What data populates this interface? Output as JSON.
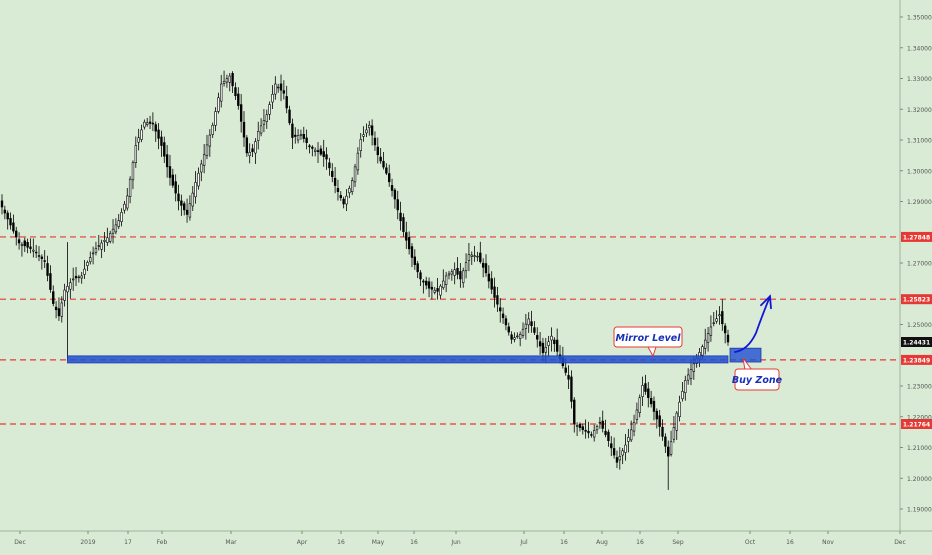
{
  "colors": {
    "background": "#d9ebd5",
    "candle_up": "#ffffff",
    "candle_down": "#000000",
    "candle_outline": "#000000",
    "level_line": "#e53935",
    "zone_fill": "#1f4fd1",
    "arrow": "#1515d8",
    "price_tag_red": "#e53935",
    "price_tag_black": "#111111"
  },
  "chart_data": {
    "type": "candlestick",
    "title": "",
    "xlabel": "",
    "ylabel": "",
    "ylim": [
      1.182,
      1.357
    ],
    "x_tick_labels": [
      "Dec",
      "2019",
      "17",
      "Feb",
      "Mar",
      "Apr",
      "16",
      "May",
      "16",
      "Jun",
      "Jul",
      "16",
      "Aug",
      "16",
      "Sep",
      "Oct",
      "16",
      "Nov",
      "Dec"
    ],
    "y_tick_labels": [
      "1.35000",
      "1.34000",
      "1.33000",
      "1.32000",
      "1.31000",
      "1.30000",
      "1.29000",
      "1.27000",
      "1.25000",
      "1.23000",
      "1.22000",
      "1.21000",
      "1.20000",
      "1.19000"
    ],
    "current_price": "1.24431",
    "levels": [
      {
        "value": 1.27848,
        "label": "1.27848",
        "style": "dashed"
      },
      {
        "value": 1.25823,
        "label": "1.25823",
        "style": "dashed"
      },
      {
        "value": 1.23849,
        "label": "1.23849",
        "style": "dashed"
      },
      {
        "value": 1.21764,
        "label": "1.21764",
        "style": "dashed"
      }
    ],
    "zone": {
      "from": 1.2375,
      "to": 1.2398,
      "start": "2019-01-03"
    },
    "buy_box": {
      "from": 1.2378,
      "to": 1.2423
    },
    "annotations": [
      {
        "text": "Mirror Level"
      },
      {
        "text": "Buy Zone"
      }
    ],
    "arrow_target": 1.2595,
    "candles_anchors": [
      [
        0,
        1.2882
      ],
      [
        6,
        1.2765
      ],
      [
        11,
        1.2742
      ],
      [
        15,
        1.2705
      ],
      [
        18,
        1.2568
      ],
      [
        20,
        1.2528
      ],
      [
        22,
        1.2612
      ],
      [
        25,
        1.2648
      ],
      [
        28,
        1.2658
      ],
      [
        30,
        1.2702
      ],
      [
        33,
        1.2748
      ],
      [
        37,
        1.2782
      ],
      [
        41,
        1.2838
      ],
      [
        44,
        1.2918
      ],
      [
        47,
        1.3082
      ],
      [
        50,
        1.3158
      ],
      [
        53,
        1.3152
      ],
      [
        56,
        1.3082
      ],
      [
        59,
        1.2978
      ],
      [
        62,
        1.2902
      ],
      [
        65,
        1.2858
      ],
      [
        68,
        1.2962
      ],
      [
        71,
        1.3052
      ],
      [
        74,
        1.3148
      ],
      [
        77,
        1.3282
      ],
      [
        80,
        1.3308
      ],
      [
        83,
        1.3212
      ],
      [
        86,
        1.3058
      ],
      [
        88,
        1.3062
      ],
      [
        90,
        1.3128
      ],
      [
        93,
        1.3182
      ],
      [
        96,
        1.3282
      ],
      [
        99,
        1.3252
      ],
      [
        102,
        1.3108
      ],
      [
        105,
        1.3118
      ],
      [
        108,
        1.3078
      ],
      [
        111,
        1.3062
      ],
      [
        114,
        1.3038
      ],
      [
        117,
        1.2952
      ],
      [
        120,
        1.2892
      ],
      [
        123,
        1.2968
      ],
      [
        126,
        1.3102
      ],
      [
        129,
        1.3148
      ],
      [
        132,
        1.3052
      ],
      [
        135,
        1.2992
      ],
      [
        138,
        1.2908
      ],
      [
        141,
        1.2802
      ],
      [
        144,
        1.2718
      ],
      [
        147,
        1.2648
      ],
      [
        150,
        1.2618
      ],
      [
        153,
        1.2608
      ],
      [
        156,
        1.2658
      ],
      [
        159,
        1.2678
      ],
      [
        161,
        1.2648
      ],
      [
        164,
        1.2728
      ],
      [
        167,
        1.2722
      ],
      [
        170,
        1.2668
      ],
      [
        173,
        1.2588
      ],
      [
        176,
        1.2522
      ],
      [
        179,
        1.2452
      ],
      [
        182,
        1.2468
      ],
      [
        185,
        1.2518
      ],
      [
        188,
        1.2452
      ],
      [
        190,
        1.2408
      ],
      [
        193,
        1.2462
      ],
      [
        196,
        1.2388
      ],
      [
        199,
        1.2322
      ],
      [
        201,
        1.2178
      ],
      [
        204,
        1.2158
      ],
      [
        207,
        1.2142
      ],
      [
        210,
        1.2182
      ],
      [
        213,
        1.2122
      ],
      [
        216,
        1.2052
      ],
      [
        219,
        1.2108
      ],
      [
        222,
        1.2182
      ],
      [
        225,
        1.2302
      ],
      [
        228,
        1.2242
      ],
      [
        231,
        1.2168
      ],
      [
        234,
        1.2072
      ],
      [
        237,
        1.2212
      ],
      [
        240,
        1.2318
      ],
      [
        243,
        1.2372
      ],
      [
        246,
        1.2428
      ],
      [
        249,
        1.2492
      ],
      [
        252,
        1.2532
      ],
      [
        255,
        1.2443
      ]
    ],
    "long_wick_candle": {
      "index": 23,
      "low": 1.2382,
      "high": 1.2768
    }
  }
}
